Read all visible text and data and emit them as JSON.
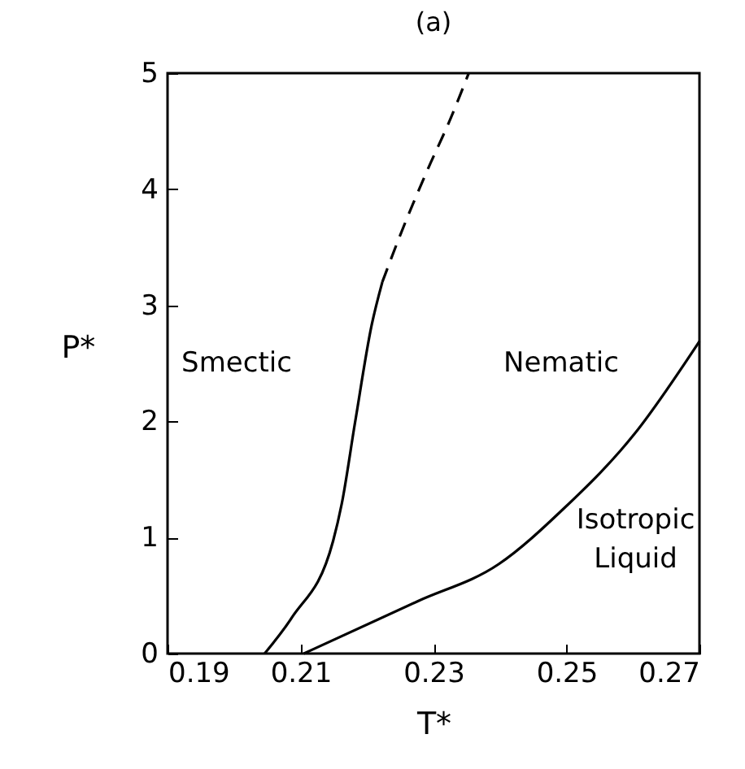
{
  "chart_data": {
    "type": "line",
    "title": "(a)",
    "xlabel": "T*",
    "ylabel": "P*",
    "xlim": [
      0.19,
      0.27
    ],
    "ylim": [
      0,
      5
    ],
    "xticks": [
      0.19,
      0.21,
      0.23,
      0.25,
      0.27
    ],
    "yticks": [
      0,
      1,
      2,
      3,
      4,
      5
    ],
    "grid": false,
    "legend": false,
    "marker": "none",
    "series": [
      {
        "color": "#000000",
        "line_style": "solid",
        "x": [
          0.2046,
          0.2087,
          0.2149,
          0.2162,
          0.2182,
          0.2207,
          0.2223
        ],
        "values": [
          0,
          0.31,
          0.97,
          1.29,
          1.99,
          2.83,
          3.2
        ]
      },
      {
        "color": "#000000",
        "line_style": "dashed",
        "x": [
          0.2223,
          0.2251,
          0.2292,
          0.2325,
          0.2353
        ],
        "values": [
          3.2,
          3.62,
          4.18,
          4.6,
          5
        ]
      },
      {
        "color": "#000000",
        "line_style": "solid",
        "x": [
          0.2105,
          0.2276,
          0.2398,
          0.2496,
          0.2602,
          0.27
        ],
        "values": [
          0,
          0.45,
          0.77,
          1.25,
          1.89,
          2.69
        ]
      }
    ],
    "annotations": [
      "Smectic",
      "Nematic",
      "Isotropic Liquid"
    ]
  }
}
